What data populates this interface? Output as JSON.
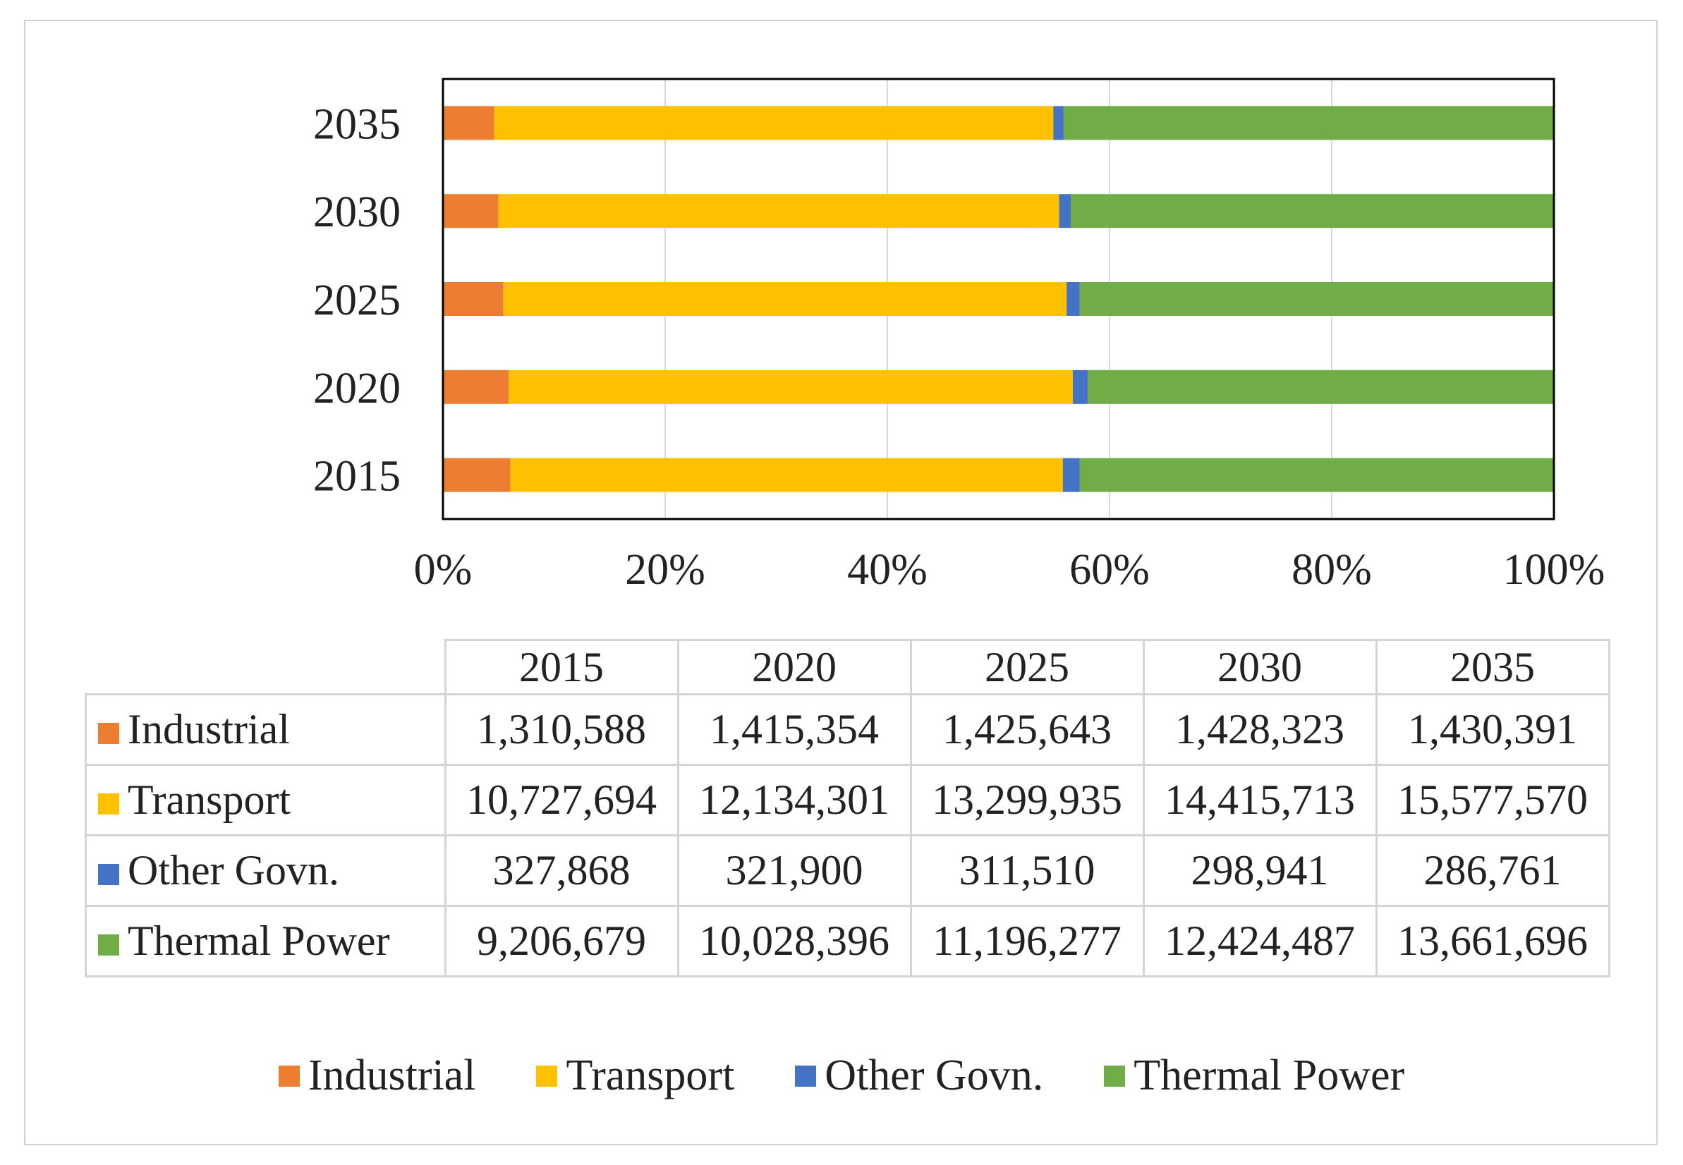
{
  "chart_data": {
    "type": "bar",
    "orientation": "horizontal",
    "stacking": "percent",
    "categories": [
      "2015",
      "2020",
      "2025",
      "2030",
      "2035"
    ],
    "series": [
      {
        "name": "Industrial",
        "color": "#ED7D31",
        "values": [
          1310588,
          1415354,
          1425643,
          1428323,
          1430391
        ]
      },
      {
        "name": "Transport",
        "color": "#FFC000",
        "values": [
          10727694,
          12134301,
          13299935,
          14415713,
          15577570
        ]
      },
      {
        "name": "Other Govn.",
        "color": "#4472C4",
        "values": [
          327868,
          321900,
          311510,
          298941,
          286761
        ]
      },
      {
        "name": "Thermal Power",
        "color": "#70AD47",
        "values": [
          9206679,
          10028396,
          11196277,
          12424487,
          13661696
        ]
      }
    ],
    "xticks": [
      "0%",
      "20%",
      "40%",
      "60%",
      "80%",
      "100%"
    ],
    "xlim": [
      0,
      100
    ],
    "grid": true,
    "legend_position": "bottom",
    "table": {
      "columns": [
        "2015",
        "2020",
        "2025",
        "2030",
        "2035"
      ],
      "rows": [
        {
          "label": "Industrial",
          "color": "#ED7D31",
          "cells": [
            "1,310,588",
            "1,415,354",
            "1,425,643",
            "1,428,323",
            "1,430,391"
          ]
        },
        {
          "label": "Transport",
          "color": "#FFC000",
          "cells": [
            "10,727,694",
            "12,134,301",
            "13,299,935",
            "14,415,713",
            "15,577,570"
          ]
        },
        {
          "label": "Other Govn.",
          "color": "#4472C4",
          "cells": [
            "327,868",
            "321,900",
            "311,510",
            "298,941",
            "286,761"
          ]
        },
        {
          "label": "Thermal Power",
          "color": "#70AD47",
          "cells": [
            "9,206,679",
            "10,028,396",
            "11,196,277",
            "12,424,487",
            "13,661,696"
          ]
        }
      ]
    }
  }
}
